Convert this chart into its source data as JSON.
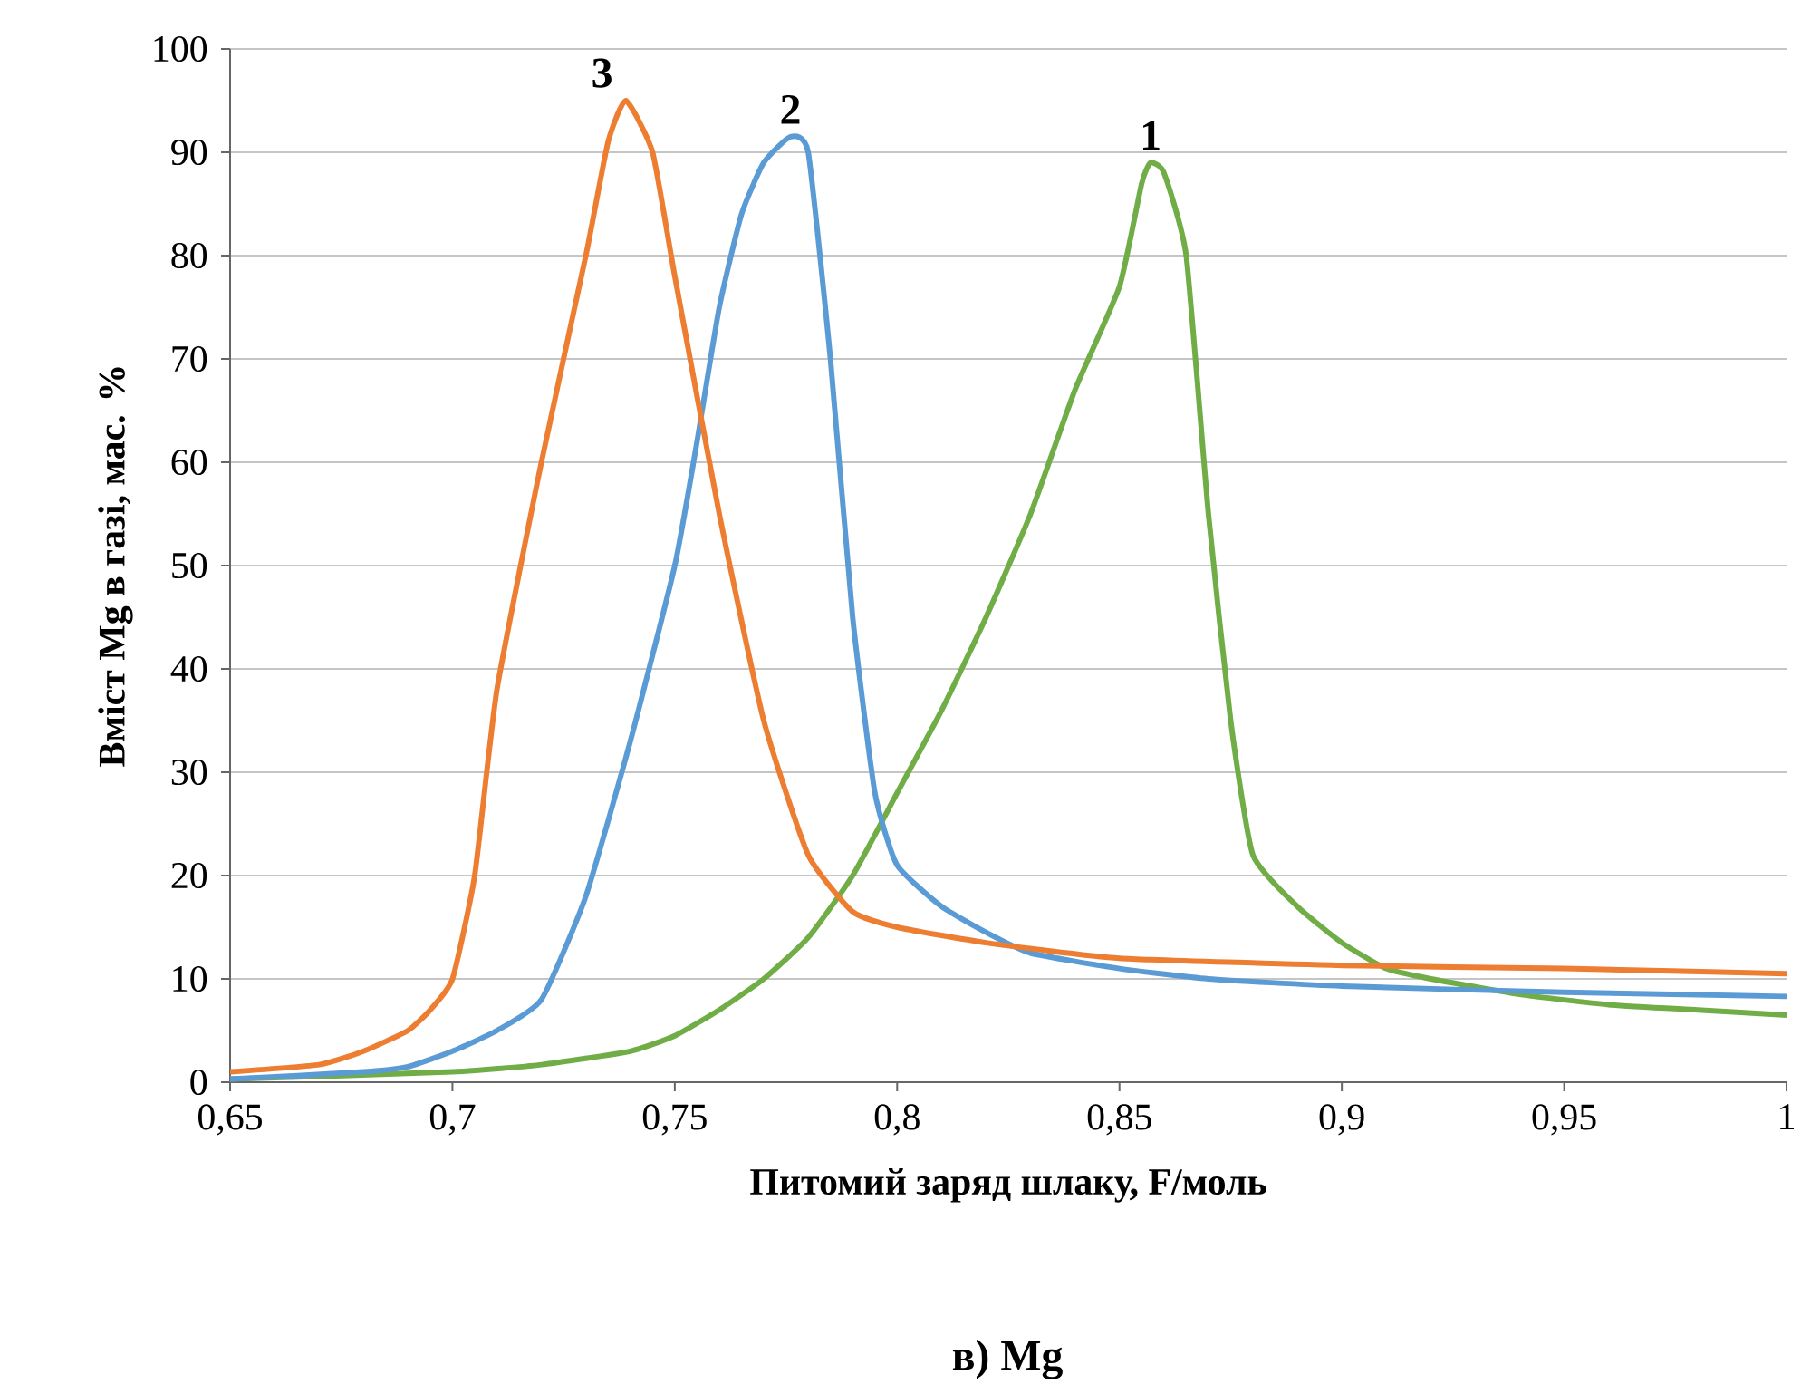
{
  "chart_data": {
    "type": "line",
    "title": "в) Mg",
    "xlabel": "Питомий заряд шлаку, F/моль",
    "ylabel": "Вміст Mg в газі, мас. %",
    "xlim": [
      0.65,
      1
    ],
    "ylim": [
      0,
      100
    ],
    "xticks": [
      {
        "value": 0.65,
        "label": "0,65"
      },
      {
        "value": 0.7,
        "label": "0,7"
      },
      {
        "value": 0.75,
        "label": "0,75"
      },
      {
        "value": 0.8,
        "label": "0,8"
      },
      {
        "value": 0.85,
        "label": "0,85"
      },
      {
        "value": 0.9,
        "label": "0,9"
      },
      {
        "value": 0.95,
        "label": "0,95"
      },
      {
        "value": 1,
        "label": "1"
      }
    ],
    "yticks": [
      0,
      10,
      20,
      30,
      40,
      50,
      60,
      70,
      80,
      90,
      100
    ],
    "grid": "y",
    "series": [
      {
        "name": "1",
        "color": "#70ad47",
        "x": [
          0.65,
          0.7,
          0.72,
          0.74,
          0.75,
          0.76,
          0.77,
          0.78,
          0.79,
          0.8,
          0.81,
          0.82,
          0.83,
          0.84,
          0.85,
          0.855,
          0.857,
          0.86,
          0.865,
          0.87,
          0.875,
          0.88,
          0.89,
          0.9,
          0.91,
          0.92,
          0.94,
          0.96,
          0.98,
          1.0
        ],
        "values": [
          0.3,
          1,
          1.7,
          3,
          4.5,
          7,
          10,
          14,
          20,
          28,
          36,
          45,
          55,
          67,
          77,
          87,
          89,
          88,
          80,
          55,
          35,
          22,
          17,
          13.5,
          11,
          10,
          8.5,
          7.5,
          7,
          6.5
        ]
      },
      {
        "name": "2",
        "color": "#5b9bd5",
        "x": [
          0.65,
          0.68,
          0.69,
          0.7,
          0.71,
          0.72,
          0.73,
          0.74,
          0.75,
          0.755,
          0.76,
          0.765,
          0.77,
          0.776,
          0.78,
          0.785,
          0.79,
          0.795,
          0.8,
          0.81,
          0.82,
          0.83,
          0.85,
          0.87,
          0.9,
          0.95,
          1.0
        ],
        "values": [
          0.3,
          1,
          1.5,
          3,
          5,
          8,
          18,
          33,
          50,
          62,
          75,
          84,
          89,
          91.5,
          90,
          70,
          45,
          28,
          21,
          17,
          14.5,
          12.5,
          11,
          10,
          9.3,
          8.7,
          8.3
        ]
      },
      {
        "name": "3",
        "color": "#ed7d31",
        "x": [
          0.65,
          0.67,
          0.68,
          0.69,
          0.695,
          0.7,
          0.705,
          0.71,
          0.72,
          0.73,
          0.735,
          0.739,
          0.745,
          0.75,
          0.76,
          0.77,
          0.78,
          0.79,
          0.8,
          0.82,
          0.85,
          0.9,
          0.95,
          1.0
        ],
        "values": [
          1,
          1.7,
          3,
          5,
          7,
          10,
          20,
          38,
          60,
          80,
          91,
          95,
          90,
          78,
          55,
          35,
          22,
          16.5,
          15,
          13.5,
          12,
          11.3,
          11,
          10.5
        ]
      }
    ]
  }
}
